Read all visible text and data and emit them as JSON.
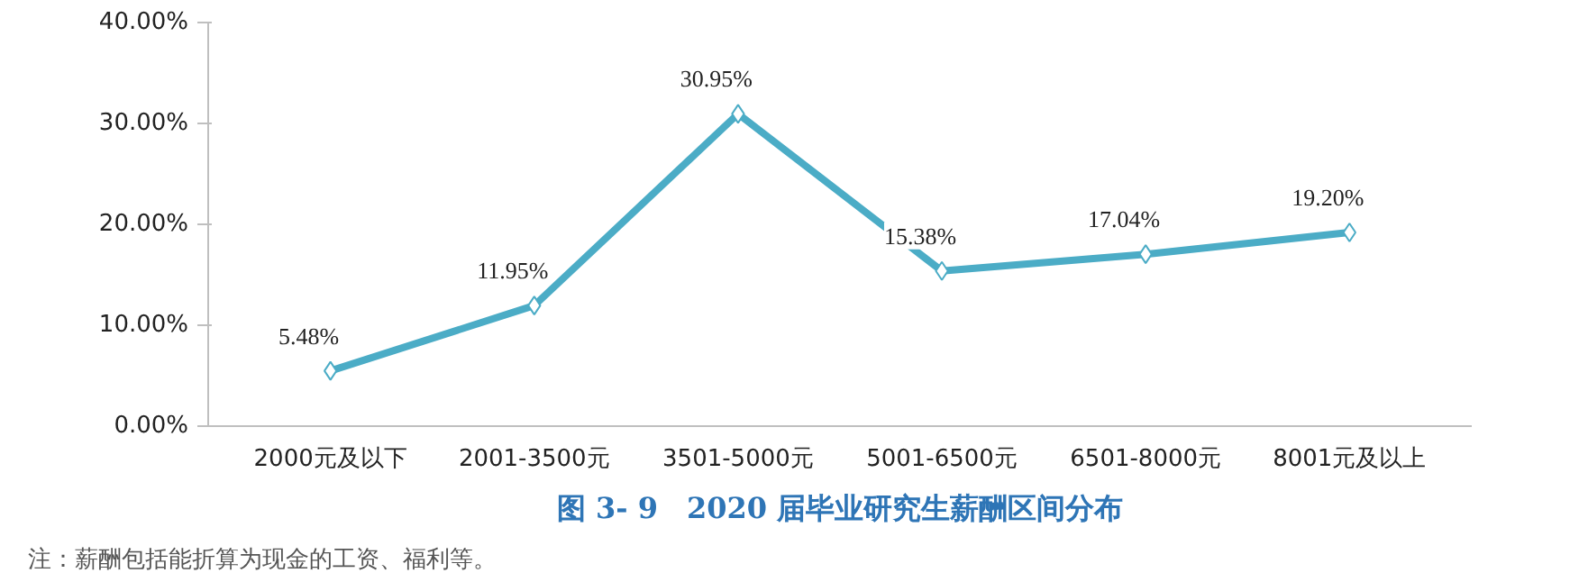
{
  "chart_data": {
    "type": "line",
    "title": "图 3- 9　2020 届毕业研究生薪酬区间分布",
    "categories": [
      "2000元及以下",
      "2001-3500元",
      "3501-5000元",
      "5001-6500元",
      "6501-8000元",
      "8001元及以上"
    ],
    "series": [
      {
        "color": "#4bacc6",
        "values": [
          5.48,
          11.95,
          30.95,
          15.38,
          17.04,
          19.2
        ],
        "value_labels": [
          "5.48%",
          "11.95%",
          "30.95%",
          "15.38%",
          "17.04%",
          "19.20%"
        ]
      }
    ],
    "ylim": [
      0,
      40
    ],
    "yticks": [
      {
        "value": 0,
        "label": "0.00%"
      },
      {
        "value": 10,
        "label": "10.00%"
      },
      {
        "value": 20,
        "label": "20.00%"
      },
      {
        "value": 30,
        "label": "30.00%"
      },
      {
        "value": 40,
        "label": "40.00%"
      }
    ],
    "grid": false,
    "marker": "diamond",
    "line_style": "solid",
    "annotations": [
      "注：薪酬包括能折算为现金的工资、福利等。"
    ]
  }
}
